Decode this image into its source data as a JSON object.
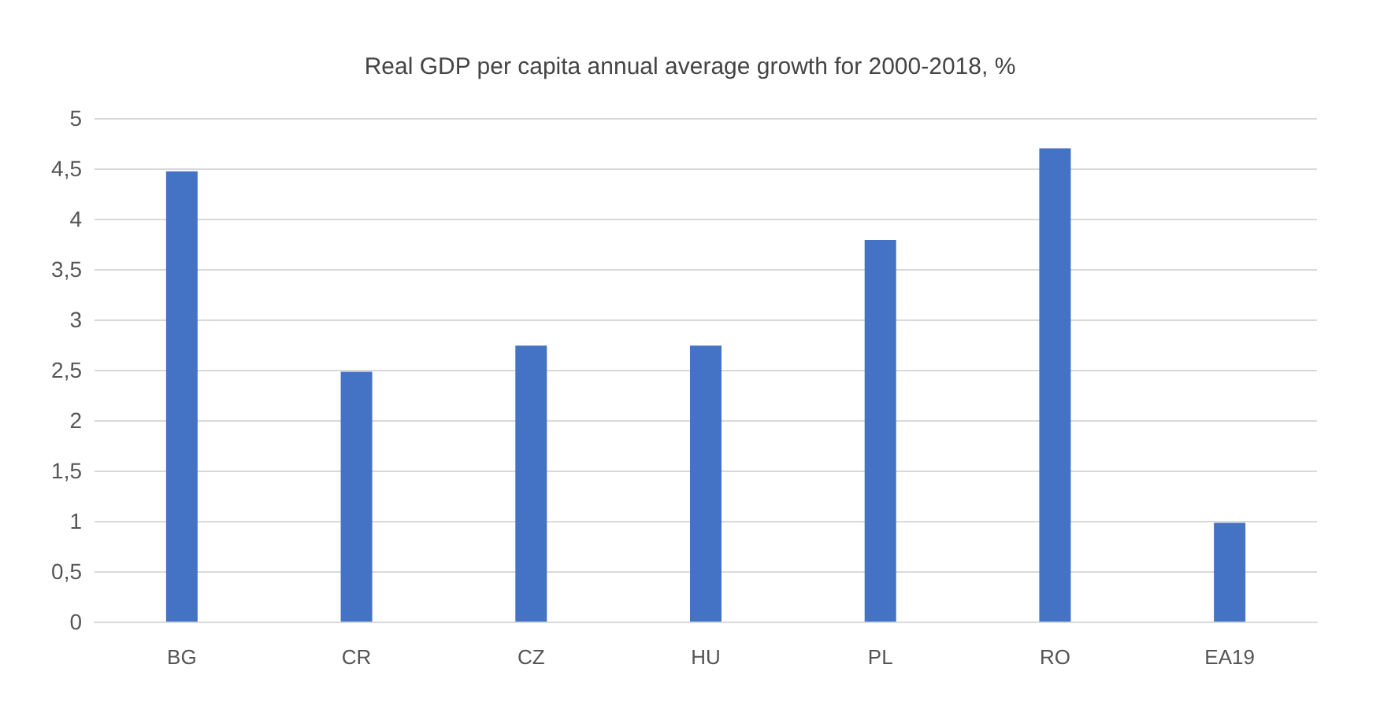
{
  "chart_data": {
    "type": "bar",
    "title": "Real GDP per capita annual average growth for 2000-2018, %",
    "categories": [
      "BG",
      "CR",
      "CZ",
      "HU",
      "PL",
      "RO",
      "EA19"
    ],
    "values": [
      4.47,
      2.48,
      2.74,
      2.74,
      3.79,
      4.7,
      0.98
    ],
    "color": "#4472c4",
    "ylim": [
      0,
      5
    ],
    "yticks": [
      {
        "value": 0,
        "label": "0"
      },
      {
        "value": 0.5,
        "label": "0,5"
      },
      {
        "value": 1,
        "label": "1"
      },
      {
        "value": 1.5,
        "label": "1,5"
      },
      {
        "value": 2,
        "label": "2"
      },
      {
        "value": 2.5,
        "label": "2,5"
      },
      {
        "value": 3,
        "label": "3"
      },
      {
        "value": 3.5,
        "label": "3,5"
      },
      {
        "value": 4,
        "label": "4"
      },
      {
        "value": 4.5,
        "label": "4,5"
      },
      {
        "value": 5,
        "label": "5"
      }
    ],
    "grid": true
  }
}
